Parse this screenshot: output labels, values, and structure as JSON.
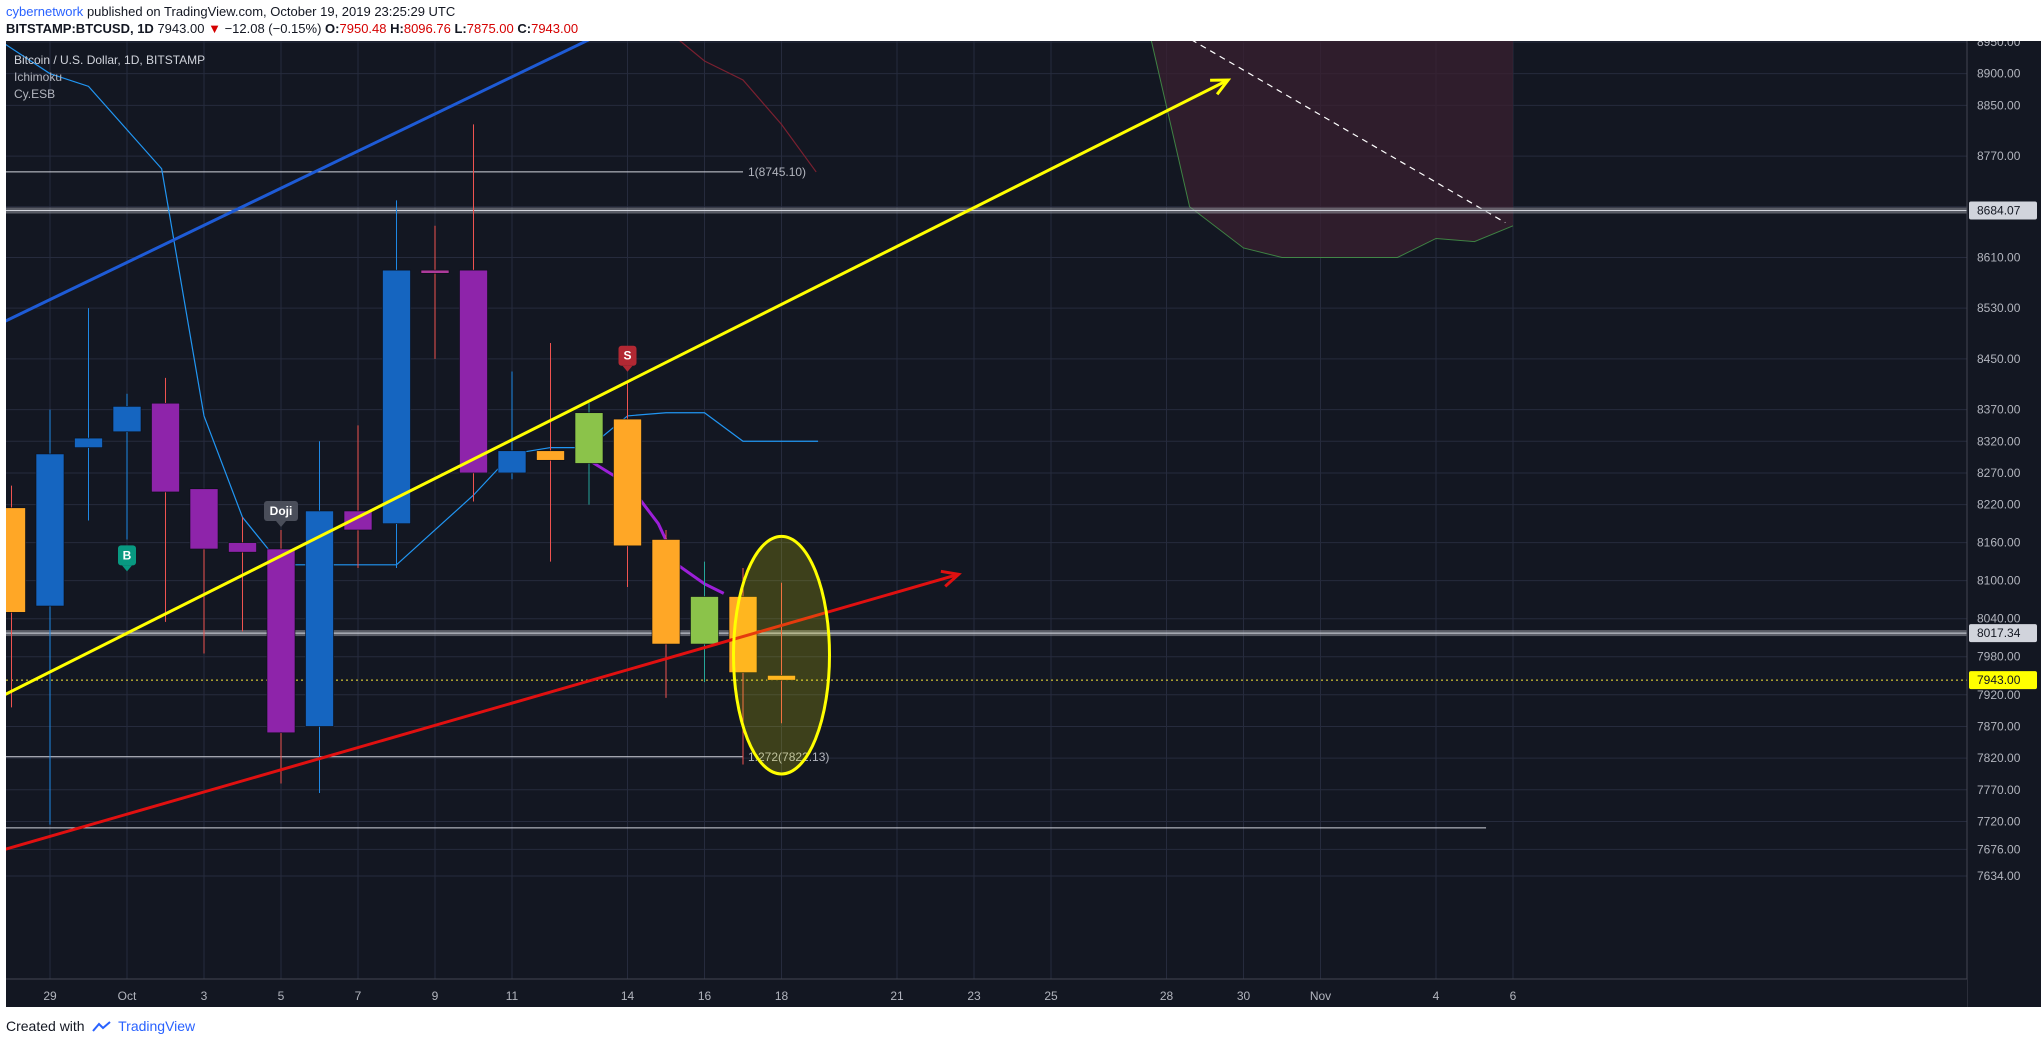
{
  "header": {
    "author": "cybernetwork",
    "published_text": "published on TradingView.com, October 19, 2019 23:25:29 UTC",
    "symbol": "BITSTAMP:BTCUSD, 1D",
    "last_price": "7943.00",
    "change_arrow": "▼",
    "change": "−12.08 (−0.15%)",
    "open_label": "O:",
    "open": "7950.48",
    "high_label": "H:",
    "high": "8096.76",
    "low_label": "L:",
    "low": "7875.00",
    "close_label": "C:",
    "close": "7943.00"
  },
  "legend": {
    "title": "Bitcoin / U.S. Dollar, 1D, BITSTAMP",
    "indicator1": "Ichimoku",
    "indicator2": "Cy.ESB"
  },
  "footer": {
    "created_with": "Created with",
    "brand": "TradingView"
  },
  "colors": {
    "background": "#131722",
    "grid": "#262b3d",
    "blue_candle": "#1565c0",
    "purple_candle": "#8e24aa",
    "orange_candle": "#ffa726",
    "green_candle": "#8bc34a",
    "pink_candle": "#ad3b9b",
    "yellow_line": "#ffff00",
    "red_line": "#e01010",
    "blue_line": "#1e5bd6",
    "cloud": "#3a2030"
  },
  "chart_data": {
    "type": "candlestick",
    "ylim": [
      7600,
      8980
    ],
    "y_ticks": [
      8950.0,
      8900.0,
      8850.0,
      8770.0,
      8690.0,
      8610.0,
      8530.0,
      8450.0,
      8370.0,
      8320.0,
      8270.0,
      8220.0,
      8160.0,
      8100.0,
      8040.0,
      7980.0,
      7920.0,
      7870.0,
      7820.0,
      7770.0,
      7720.0,
      7676.0,
      7634.0
    ],
    "x_ticks": [
      {
        "label": "29",
        "day": 29
      },
      {
        "label": "Oct",
        "day": 31
      },
      {
        "label": "3",
        "day": 33
      },
      {
        "label": "5",
        "day": 35
      },
      {
        "label": "7",
        "day": 37
      },
      {
        "label": "9",
        "day": 39
      },
      {
        "label": "11",
        "day": 41
      },
      {
        "label": "14",
        "day": 44
      },
      {
        "label": "16",
        "day": 46
      },
      {
        "label": "18",
        "day": 48
      },
      {
        "label": "21",
        "day": 51
      },
      {
        "label": "23",
        "day": 53
      },
      {
        "label": "25",
        "day": 55
      },
      {
        "label": "28",
        "day": 58
      },
      {
        "label": "30",
        "day": 60
      },
      {
        "label": "Nov",
        "day": 62
      },
      {
        "label": "4",
        "day": 65
      },
      {
        "label": "6",
        "day": 67
      }
    ],
    "candles": [
      {
        "day": 27,
        "o": 8200,
        "h": 8360,
        "l": 8010,
        "c": 8215,
        "color": "blue"
      },
      {
        "day": 28,
        "o": 8215,
        "h": 8250,
        "l": 7900,
        "c": 8050,
        "color": "orange"
      },
      {
        "day": 29,
        "o": 8060,
        "h": 8370,
        "l": 7715,
        "c": 8300,
        "color": "blue"
      },
      {
        "day": 30,
        "o": 8310,
        "h": 8530,
        "l": 8195,
        "c": 8325,
        "color": "blue"
      },
      {
        "day": 31,
        "o": 8335,
        "h": 8395,
        "l": 8165,
        "c": 8375,
        "color": "blue"
      },
      {
        "day": 32,
        "o": 8380,
        "h": 8420,
        "l": 8035,
        "c": 8240,
        "color": "purple"
      },
      {
        "day": 33,
        "o": 8245,
        "h": 8245,
        "l": 7985,
        "c": 8150,
        "color": "purple"
      },
      {
        "day": 34,
        "o": 8160,
        "h": 8200,
        "l": 8020,
        "c": 8145,
        "color": "purple"
      },
      {
        "day": 35,
        "o": 8150,
        "h": 8180,
        "l": 7780,
        "c": 7860,
        "color": "purple"
      },
      {
        "day": 36,
        "o": 7870,
        "h": 8320,
        "l": 7765,
        "c": 8210,
        "color": "blue"
      },
      {
        "day": 37,
        "o": 8210,
        "h": 8345,
        "l": 8120,
        "c": 8180,
        "color": "purple"
      },
      {
        "day": 38,
        "o": 8190,
        "h": 8700,
        "l": 8120,
        "c": 8590,
        "color": "blue"
      },
      {
        "day": 39,
        "o": 8590,
        "h": 8660,
        "l": 8450,
        "c": 8585,
        "color": "pink"
      },
      {
        "day": 40,
        "o": 8590,
        "h": 8820,
        "l": 8225,
        "c": 8270,
        "color": "purple"
      },
      {
        "day": 41,
        "o": 8270,
        "h": 8430,
        "l": 8260,
        "c": 8305,
        "color": "blue"
      },
      {
        "day": 42,
        "o": 8290,
        "h": 8475,
        "l": 8130,
        "c": 8305,
        "color": "orange"
      },
      {
        "day": 43,
        "o": 8285,
        "h": 8380,
        "l": 8220,
        "c": 8365,
        "color": "green"
      },
      {
        "day": 44,
        "o": 8355,
        "h": 8415,
        "l": 8090,
        "c": 8155,
        "color": "orange"
      },
      {
        "day": 45,
        "o": 8165,
        "h": 8180,
        "l": 7915,
        "c": 8000,
        "color": "orange"
      },
      {
        "day": 46,
        "o": 8000,
        "h": 8130,
        "l": 7940,
        "c": 8075,
        "color": "green"
      },
      {
        "day": 47,
        "o": 8075,
        "h": 8120,
        "l": 7810,
        "c": 7955,
        "color": "orange"
      },
      {
        "day": 48,
        "o": 7950.48,
        "h": 8096.76,
        "l": 7875.0,
        "c": 7943.0,
        "color": "orange"
      }
    ],
    "trend_lines": [
      {
        "name": "blue-channel-line",
        "x1": 27,
        "y1": 8485,
        "x2": 43.9,
        "y2": 8980,
        "color": "blue"
      },
      {
        "name": "yellow-support-line",
        "x1": 27,
        "y1": 7895,
        "x2": 59.6,
        "y2": 8890,
        "color": "yellow",
        "arrow": true
      },
      {
        "name": "red-support-line",
        "x1": 27.2,
        "y1": 7665,
        "x2": 52.6,
        "y2": 8110,
        "color": "red",
        "arrow": true
      }
    ],
    "horizontal_levels": [
      {
        "value": 8745.1,
        "x_end": 47.0,
        "label": "1(8745.10)"
      },
      {
        "value": 7822.13,
        "x_end": 47.0,
        "label": "1.272(7822.13)"
      },
      {
        "value": 7710,
        "x_end": 66.3,
        "label": ""
      }
    ],
    "zones": [
      {
        "value": 8684.07,
        "label": "8684.07"
      },
      {
        "value": 8017.34,
        "label": "8017.34"
      }
    ],
    "last_price_line": {
      "value": 7943.0,
      "label": "7943.00"
    },
    "markers": [
      {
        "text": "B",
        "day": 31,
        "value": 8140,
        "color": "#089981"
      },
      {
        "text": "S",
        "day": 44,
        "value": 8455,
        "color": "#b22833"
      },
      {
        "text": "Doji",
        "day": 35,
        "value": 8210,
        "color": "#4a4e5a"
      }
    ],
    "kijun_line": [
      [
        27,
        8980
      ],
      [
        29,
        8900
      ],
      [
        30,
        8880
      ],
      [
        31.9,
        8750
      ],
      [
        33,
        8360
      ],
      [
        34,
        8200
      ],
      [
        35,
        8125
      ],
      [
        37.2,
        8125
      ],
      [
        38,
        8125
      ],
      [
        39,
        8180
      ],
      [
        40,
        8235
      ],
      [
        41,
        8300
      ],
      [
        42,
        8310
      ],
      [
        43,
        8310
      ],
      [
        44,
        8360
      ],
      [
        45,
        8365
      ],
      [
        46,
        8365
      ],
      [
        47,
        8320
      ],
      [
        48,
        8320
      ],
      [
        48.95,
        8320
      ]
    ],
    "red_span_line": [
      [
        44.8,
        8980
      ],
      [
        46,
        8920
      ],
      [
        47,
        8890
      ],
      [
        48,
        8820
      ],
      [
        48.9,
        8745
      ]
    ],
    "purple_ma_line": [
      [
        43,
        8290
      ],
      [
        43.8,
        8260
      ],
      [
        44.3,
        8230
      ],
      [
        44.8,
        8190
      ],
      [
        45.3,
        8125
      ],
      [
        46,
        8095
      ],
      [
        46.5,
        8080
      ]
    ],
    "cloud_top": [
      [
        57.5,
        8980
      ],
      [
        67,
        8980
      ]
    ],
    "cloud_bottom": [
      [
        57.5,
        8980
      ],
      [
        58.6,
        8690
      ],
      [
        60,
        8625
      ],
      [
        61,
        8610
      ],
      [
        62,
        8610
      ],
      [
        63,
        8610
      ],
      [
        64,
        8610
      ],
      [
        65,
        8640
      ],
      [
        66,
        8635
      ],
      [
        67,
        8660
      ]
    ],
    "dashed_line": [
      [
        57.9,
        8980
      ],
      [
        66.8,
        8665
      ]
    ],
    "circle_highlight": {
      "day": 48,
      "value_center": 7925,
      "value_top": 8170,
      "value_bottom": 7795
    }
  }
}
